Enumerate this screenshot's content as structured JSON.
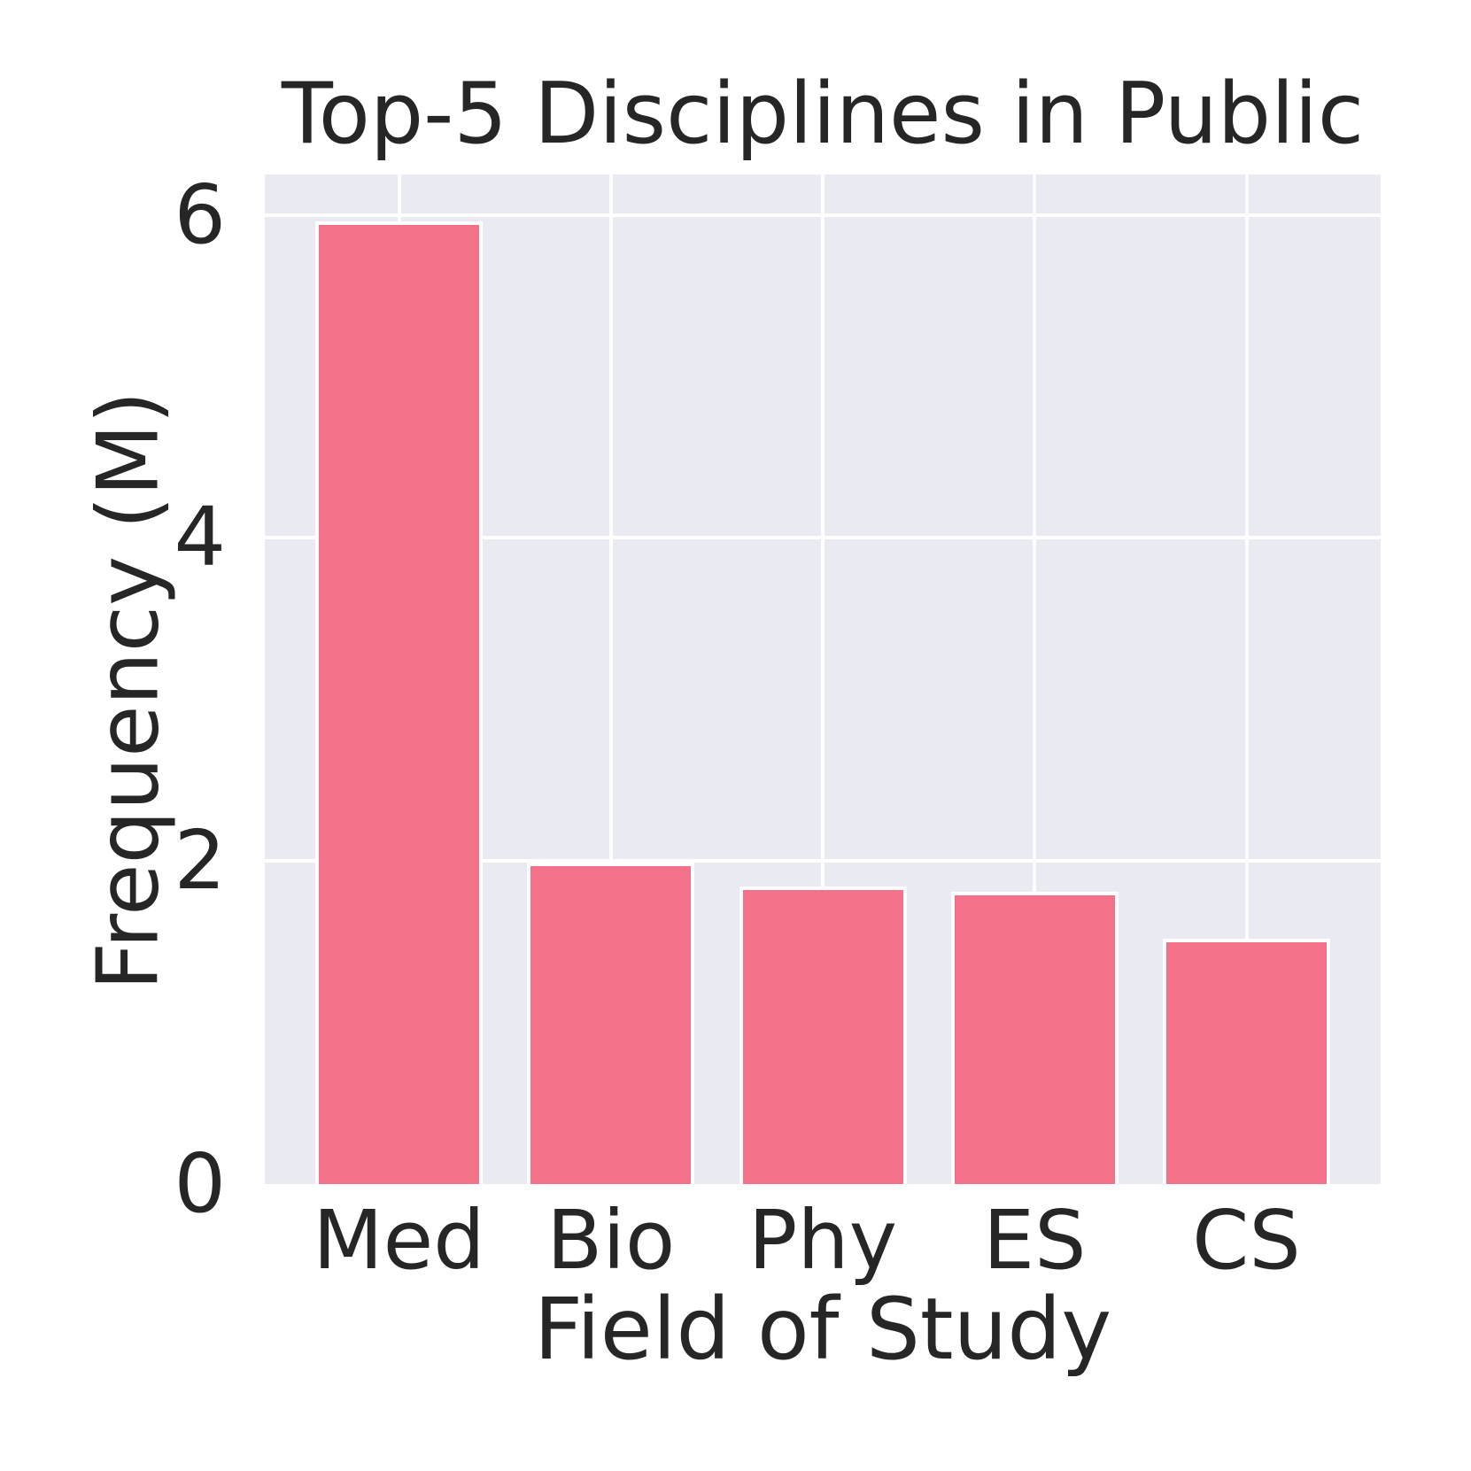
{
  "chart_data": {
    "type": "bar",
    "title": "Top-5 Disciplines in Public",
    "xlabel": "Field of Study",
    "ylabel": "Frequency (M)",
    "categories": [
      "Med",
      "Bio",
      "Phy",
      "ES",
      "CS"
    ],
    "values": [
      5.96,
      1.99,
      1.84,
      1.81,
      1.52
    ],
    "yticks": [
      0,
      2,
      4,
      6
    ],
    "ylim": [
      0,
      6.25
    ],
    "grid": true,
    "legend": false,
    "colors": {
      "bar": "#f4718a",
      "plot_background": "#eaeaf2",
      "grid": "#ffffff",
      "text": "#262626"
    }
  }
}
